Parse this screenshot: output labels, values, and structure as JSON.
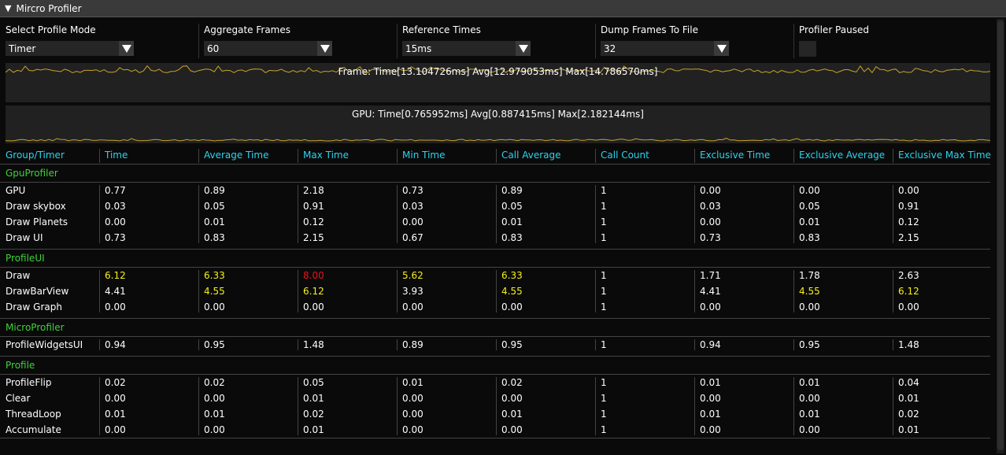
{
  "window": {
    "title": "Mircro Profiler"
  },
  "controls": [
    {
      "label": "Select Profile Mode",
      "value": "Timer",
      "type": "combo"
    },
    {
      "label": "Aggregate Frames",
      "value": "60",
      "type": "combo"
    },
    {
      "label": "Reference Times",
      "value": "15ms",
      "type": "combo"
    },
    {
      "label": "Dump Frames To File",
      "value": "32",
      "type": "combo"
    },
    {
      "label": "Profiler Paused",
      "type": "checkbox",
      "checked": false
    }
  ],
  "graphs": [
    {
      "label": "Frame: Time[13.104726ms] Avg[12.979053ms] Max[14.786570ms]"
    },
    {
      "label": "GPU: Time[0.765952ms] Avg[0.887415ms] Max[2.182144ms]"
    }
  ],
  "colors": {
    "header": "#2ad4f0",
    "group": "#3fd23a",
    "warn": "#f5f01c",
    "critical": "#e8131b",
    "graph_line": "#c9a22a"
  },
  "columns": [
    "Group/Timer",
    "Time",
    "Average Time",
    "Max Time",
    "Min Time",
    "Call Average",
    "Call Count",
    "Exclusive Time",
    "Exclusive Average",
    "Exclusive Max Time"
  ],
  "groups": [
    {
      "name": "GpuProfiler",
      "rows": [
        {
          "cells": [
            "GPU",
            "0.77",
            "0.89",
            "2.18",
            "0.73",
            "0.89",
            "1",
            "0.00",
            "0.00",
            "0.00"
          ],
          "status": []
        },
        {
          "cells": [
            "Draw skybox",
            "0.03",
            "0.05",
            "0.91",
            "0.03",
            "0.05",
            "1",
            "0.03",
            "0.05",
            "0.91"
          ],
          "status": []
        },
        {
          "cells": [
            "Draw Planets",
            "0.00",
            "0.01",
            "0.12",
            "0.00",
            "0.01",
            "1",
            "0.00",
            "0.01",
            "0.12"
          ],
          "status": []
        },
        {
          "cells": [
            "Draw UI",
            "0.73",
            "0.83",
            "2.15",
            "0.67",
            "0.83",
            "1",
            "0.73",
            "0.83",
            "2.15"
          ],
          "status": []
        }
      ]
    },
    {
      "name": "ProfileUI",
      "rows": [
        {
          "cells": [
            "Draw",
            "6.12",
            "6.33",
            "8.00",
            "5.62",
            "6.33",
            "1",
            "1.71",
            "1.78",
            "2.63"
          ],
          "status": [
            "",
            "warn",
            "warn",
            "critical",
            "warn",
            "warn",
            "",
            "",
            "",
            ""
          ]
        },
        {
          "cells": [
            "DrawBarView",
            "4.41",
            "4.55",
            "6.12",
            "3.93",
            "4.55",
            "1",
            "4.41",
            "4.55",
            "6.12"
          ],
          "status": [
            "",
            "",
            "warn",
            "warn",
            "",
            "warn",
            "",
            "",
            "warn",
            "warn"
          ]
        },
        {
          "cells": [
            "Draw Graph",
            "0.00",
            "0.00",
            "0.00",
            "0.00",
            "0.00",
            "1",
            "0.00",
            "0.00",
            "0.00"
          ],
          "status": []
        }
      ]
    },
    {
      "name": "MicroProfiler",
      "rows": [
        {
          "cells": [
            "ProfileWidgetsUI",
            "0.94",
            "0.95",
            "1.48",
            "0.89",
            "0.95",
            "1",
            "0.94",
            "0.95",
            "1.48"
          ],
          "status": []
        }
      ]
    },
    {
      "name": "Profile",
      "rows": [
        {
          "cells": [
            "ProfileFlip",
            "0.02",
            "0.02",
            "0.05",
            "0.01",
            "0.02",
            "1",
            "0.01",
            "0.01",
            "0.04"
          ],
          "status": []
        },
        {
          "cells": [
            "Clear",
            "0.00",
            "0.00",
            "0.01",
            "0.00",
            "0.00",
            "1",
            "0.00",
            "0.00",
            "0.01"
          ],
          "status": []
        },
        {
          "cells": [
            "ThreadLoop",
            "0.01",
            "0.01",
            "0.02",
            "0.00",
            "0.01",
            "1",
            "0.01",
            "0.01",
            "0.02"
          ],
          "status": []
        },
        {
          "cells": [
            "Accumulate",
            "0.00",
            "0.00",
            "0.01",
            "0.00",
            "0.00",
            "1",
            "0.00",
            "0.00",
            "0.01"
          ],
          "status": []
        }
      ]
    }
  ]
}
